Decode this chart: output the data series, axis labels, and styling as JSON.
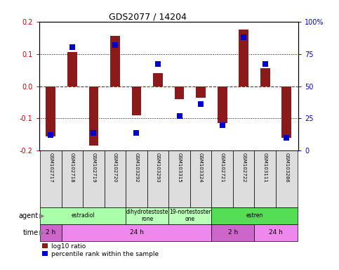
{
  "title": "GDS2077 / 14204",
  "samples": [
    "GSM102717",
    "GSM102718",
    "GSM102719",
    "GSM102720",
    "GSM103292",
    "GSM103293",
    "GSM103315",
    "GSM103324",
    "GSM102721",
    "GSM102722",
    "GSM103111",
    "GSM103286"
  ],
  "log10_ratio": [
    -0.155,
    0.105,
    -0.185,
    0.155,
    -0.09,
    0.04,
    -0.04,
    -0.035,
    -0.115,
    0.175,
    0.055,
    -0.16
  ],
  "percentile": [
    12,
    80,
    14,
    82,
    14,
    67,
    27,
    36,
    20,
    88,
    67,
    10
  ],
  "ylim": [
    -0.2,
    0.2
  ],
  "yticks_left": [
    -0.2,
    -0.1,
    0.0,
    0.1,
    0.2
  ],
  "right_yticks_pct": [
    0,
    25,
    50,
    75,
    100
  ],
  "bar_color": "#8B1A1A",
  "dot_color": "#0000CD",
  "zero_line_color": "#CC0000",
  "agent_groups": [
    {
      "label": "estradiol",
      "start": 0,
      "end": 4,
      "color": "#AAFFAA"
    },
    {
      "label": "dihydrotestoste\nrone",
      "start": 4,
      "end": 6,
      "color": "#BBFFBB"
    },
    {
      "label": "19-nortestoster\none",
      "start": 6,
      "end": 8,
      "color": "#BBFFBB"
    },
    {
      "label": "estren",
      "start": 8,
      "end": 12,
      "color": "#55DD55"
    }
  ],
  "time_groups": [
    {
      "label": "2 h",
      "start": 0,
      "end": 1,
      "color": "#CC66CC"
    },
    {
      "label": "24 h",
      "start": 1,
      "end": 8,
      "color": "#EE88EE"
    },
    {
      "label": "2 h",
      "start": 8,
      "end": 10,
      "color": "#CC66CC"
    },
    {
      "label": "24 h",
      "start": 10,
      "end": 12,
      "color": "#EE88EE"
    }
  ],
  "legend_red": "log10 ratio",
  "legend_blue": "percentile rank within the sample",
  "bar_width": 0.45
}
